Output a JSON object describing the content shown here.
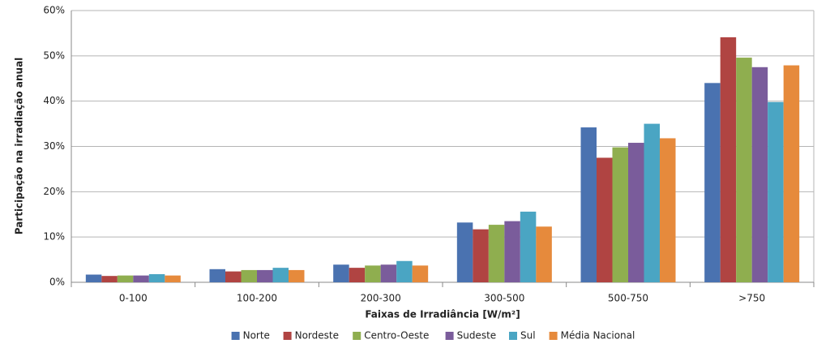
{
  "chart_data": {
    "type": "bar",
    "x_label": "Faixas de Irradiância [W/m²]",
    "y_label": "Participação na irradiação anual",
    "categories": [
      "0-100",
      "100-200",
      "200-300",
      "300-500",
      "500-750",
      ">750"
    ],
    "series": [
      {
        "name": "Norte",
        "color": "#4a72b0",
        "values": [
          1.7,
          2.9,
          3.9,
          13.2,
          34.2,
          44.0
        ]
      },
      {
        "name": "Nordeste",
        "color": "#b04442",
        "values": [
          1.4,
          2.4,
          3.2,
          11.7,
          27.5,
          54.1
        ]
      },
      {
        "name": "Centro-Oeste",
        "color": "#8fae4f",
        "values": [
          1.5,
          2.7,
          3.7,
          12.7,
          29.8,
          49.6
        ]
      },
      {
        "name": "Sudeste",
        "color": "#7a5c9b",
        "values": [
          1.5,
          2.7,
          3.9,
          13.5,
          30.8,
          47.5
        ]
      },
      {
        "name": "Sul",
        "color": "#4aa5c3",
        "values": [
          1.8,
          3.2,
          4.7,
          15.6,
          35.0,
          39.8
        ]
      },
      {
        "name": "Média Nacional",
        "color": "#e68a3c",
        "values": [
          1.5,
          2.7,
          3.7,
          12.3,
          31.8,
          47.9
        ]
      }
    ],
    "ylim": [
      0,
      60
    ],
    "yticks": [
      {
        "value": 0,
        "label": "0%"
      },
      {
        "value": 10,
        "label": "10%"
      },
      {
        "value": 20,
        "label": "20%"
      },
      {
        "value": 30,
        "label": "30%"
      },
      {
        "value": 40,
        "label": "40%"
      },
      {
        "value": 50,
        "label": "50%"
      },
      {
        "value": 60,
        "label": "60%"
      }
    ],
    "grid": true,
    "legend": "bottom"
  }
}
